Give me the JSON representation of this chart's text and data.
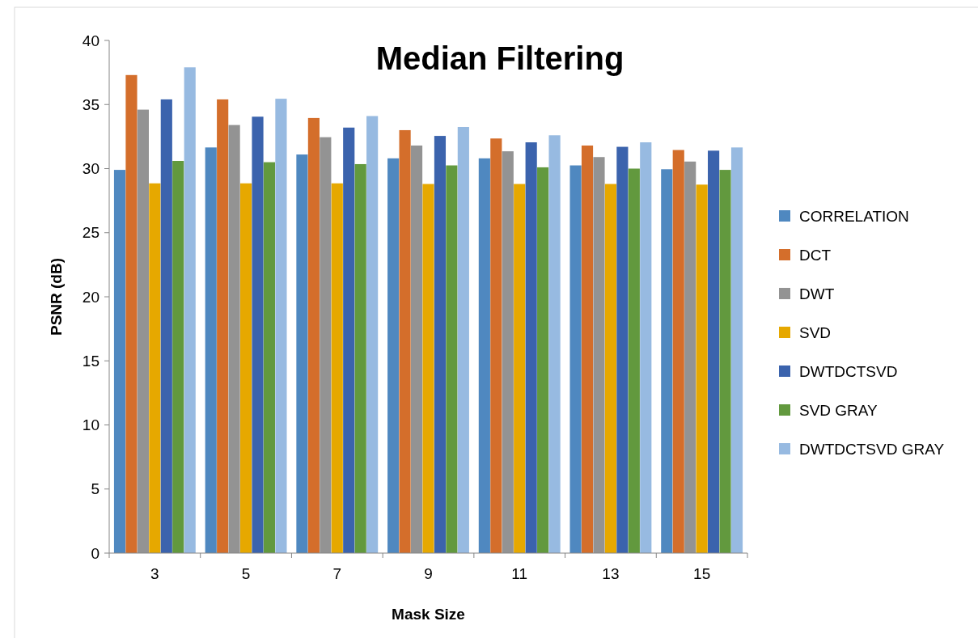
{
  "chart_data": {
    "type": "bar",
    "title": "Median Filtering",
    "xlabel": "Mask Size",
    "ylabel": "PSNR (dB)",
    "categories": [
      "3",
      "5",
      "7",
      "9",
      "11",
      "13",
      "15"
    ],
    "series": [
      {
        "name": "CORRELATION",
        "color": "#4f88c0",
        "values": [
          29.9,
          31.65,
          31.1,
          30.8,
          30.8,
          30.25,
          29.95
        ]
      },
      {
        "name": "DCT",
        "color": "#d46e2b",
        "values": [
          37.3,
          35.4,
          33.95,
          33.0,
          32.35,
          31.8,
          31.45
        ]
      },
      {
        "name": "DWT",
        "color": "#939393",
        "values": [
          34.6,
          33.4,
          32.45,
          31.8,
          31.35,
          30.9,
          30.55
        ]
      },
      {
        "name": "SVD",
        "color": "#e6a800",
        "values": [
          28.85,
          28.85,
          28.85,
          28.8,
          28.8,
          28.8,
          28.75
        ]
      },
      {
        "name": "DWTDCTSVD",
        "color": "#3b63ad",
        "values": [
          35.4,
          34.05,
          33.2,
          32.55,
          32.05,
          31.7,
          31.4
        ]
      },
      {
        "name": "SVD GRAY",
        "color": "#62993e",
        "values": [
          30.6,
          30.5,
          30.35,
          30.25,
          30.1,
          30.0,
          29.9
        ]
      },
      {
        "name": "DWTDCTSVD GRAY",
        "color": "#97bae1",
        "values": [
          37.9,
          35.45,
          34.1,
          33.25,
          32.6,
          32.05,
          31.65
        ]
      }
    ],
    "ylim": [
      0,
      40
    ],
    "yticks": [
      0,
      5,
      10,
      15,
      20,
      25,
      30,
      35,
      40
    ],
    "grid": false,
    "legend": "right"
  }
}
